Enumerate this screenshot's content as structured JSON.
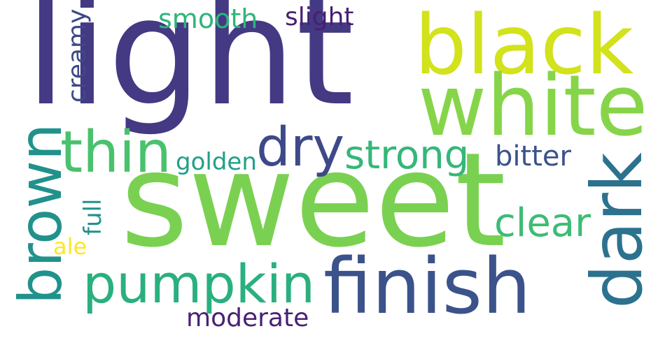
{
  "words": [
    {
      "id": "light",
      "text": "light",
      "color": "#443983"
    },
    {
      "id": "sweet",
      "text": "sweet",
      "color": "#7ad151"
    },
    {
      "id": "black",
      "text": "black",
      "color": "#d2e21b"
    },
    {
      "id": "white",
      "text": "white",
      "color": "#86d549"
    },
    {
      "id": "finish",
      "text": "finish",
      "color": "#3b528b"
    },
    {
      "id": "pumpkin",
      "text": "pumpkin",
      "color": "#2ab07f"
    },
    {
      "id": "dark",
      "text": "dark",
      "color": "#2c728e"
    },
    {
      "id": "brown",
      "text": "brown",
      "color": "#21918c"
    },
    {
      "id": "thin",
      "text": "thin",
      "color": "#4ac16d"
    },
    {
      "id": "dry",
      "text": "dry",
      "color": "#3e4989"
    },
    {
      "id": "strong",
      "text": "strong",
      "color": "#35b779"
    },
    {
      "id": "clear",
      "text": "clear",
      "color": "#3dbc74"
    },
    {
      "id": "bitter",
      "text": "bitter",
      "color": "#3b528b"
    },
    {
      "id": "smooth",
      "text": "smooth",
      "color": "#2fb47c"
    },
    {
      "id": "slight",
      "text": "slight",
      "color": "#481f70"
    },
    {
      "id": "creamy",
      "text": "creamy",
      "color": "#3e4989"
    },
    {
      "id": "golden",
      "text": "golden",
      "color": "#1fa088"
    },
    {
      "id": "full",
      "text": "full",
      "color": "#21918c"
    },
    {
      "id": "ale",
      "text": "ale",
      "color": "#fde725"
    },
    {
      "id": "moderate",
      "text": "moderate",
      "color": "#482173"
    }
  ]
}
